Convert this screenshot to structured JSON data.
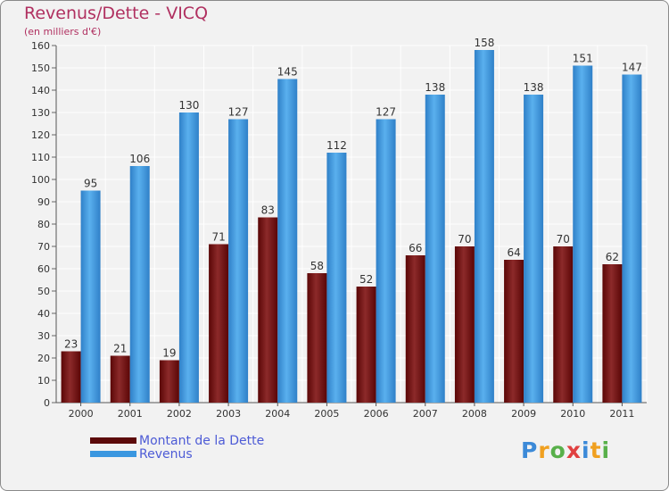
{
  "header": {
    "title": "Revenus/Dette - VICQ",
    "subtitle": "(en milliers d'€)"
  },
  "chart_data": {
    "type": "bar",
    "title": "Revenus/Dette - VICQ",
    "ylabel": "(en milliers d'€)",
    "xlabel": "",
    "categories": [
      "2000",
      "2001",
      "2002",
      "2003",
      "2004",
      "2005",
      "2006",
      "2007",
      "2008",
      "2009",
      "2010",
      "2011"
    ],
    "series": [
      {
        "name": "Montant de la Dette",
        "color": "#7a1f1f",
        "values": [
          23,
          21,
          19,
          71,
          83,
          58,
          52,
          66,
          70,
          64,
          70,
          62
        ]
      },
      {
        "name": "Revenus",
        "color": "#3a97e0",
        "values": [
          95,
          106,
          130,
          127,
          145,
          112,
          127,
          138,
          158,
          138,
          151,
          147
        ]
      }
    ],
    "ylim": [
      0,
      160
    ],
    "yticks": [
      0,
      10,
      20,
      30,
      40,
      50,
      60,
      70,
      80,
      90,
      100,
      110,
      120,
      130,
      140,
      150,
      160
    ],
    "grid": true,
    "legend": "bottom-left"
  },
  "legend": {
    "items": [
      {
        "label": "Montant de la Dette",
        "color": "#5c0a0a"
      },
      {
        "label": "Revenus",
        "color": "#3a97e0"
      }
    ]
  },
  "logo": {
    "letters": [
      "P",
      "r",
      "o",
      "x",
      "i",
      "t",
      "i"
    ],
    "colors": [
      "#3c8ad8",
      "#f0a020",
      "#58b04a",
      "#e04040",
      "#3c8ad8",
      "#f0a020",
      "#58b04a"
    ]
  }
}
